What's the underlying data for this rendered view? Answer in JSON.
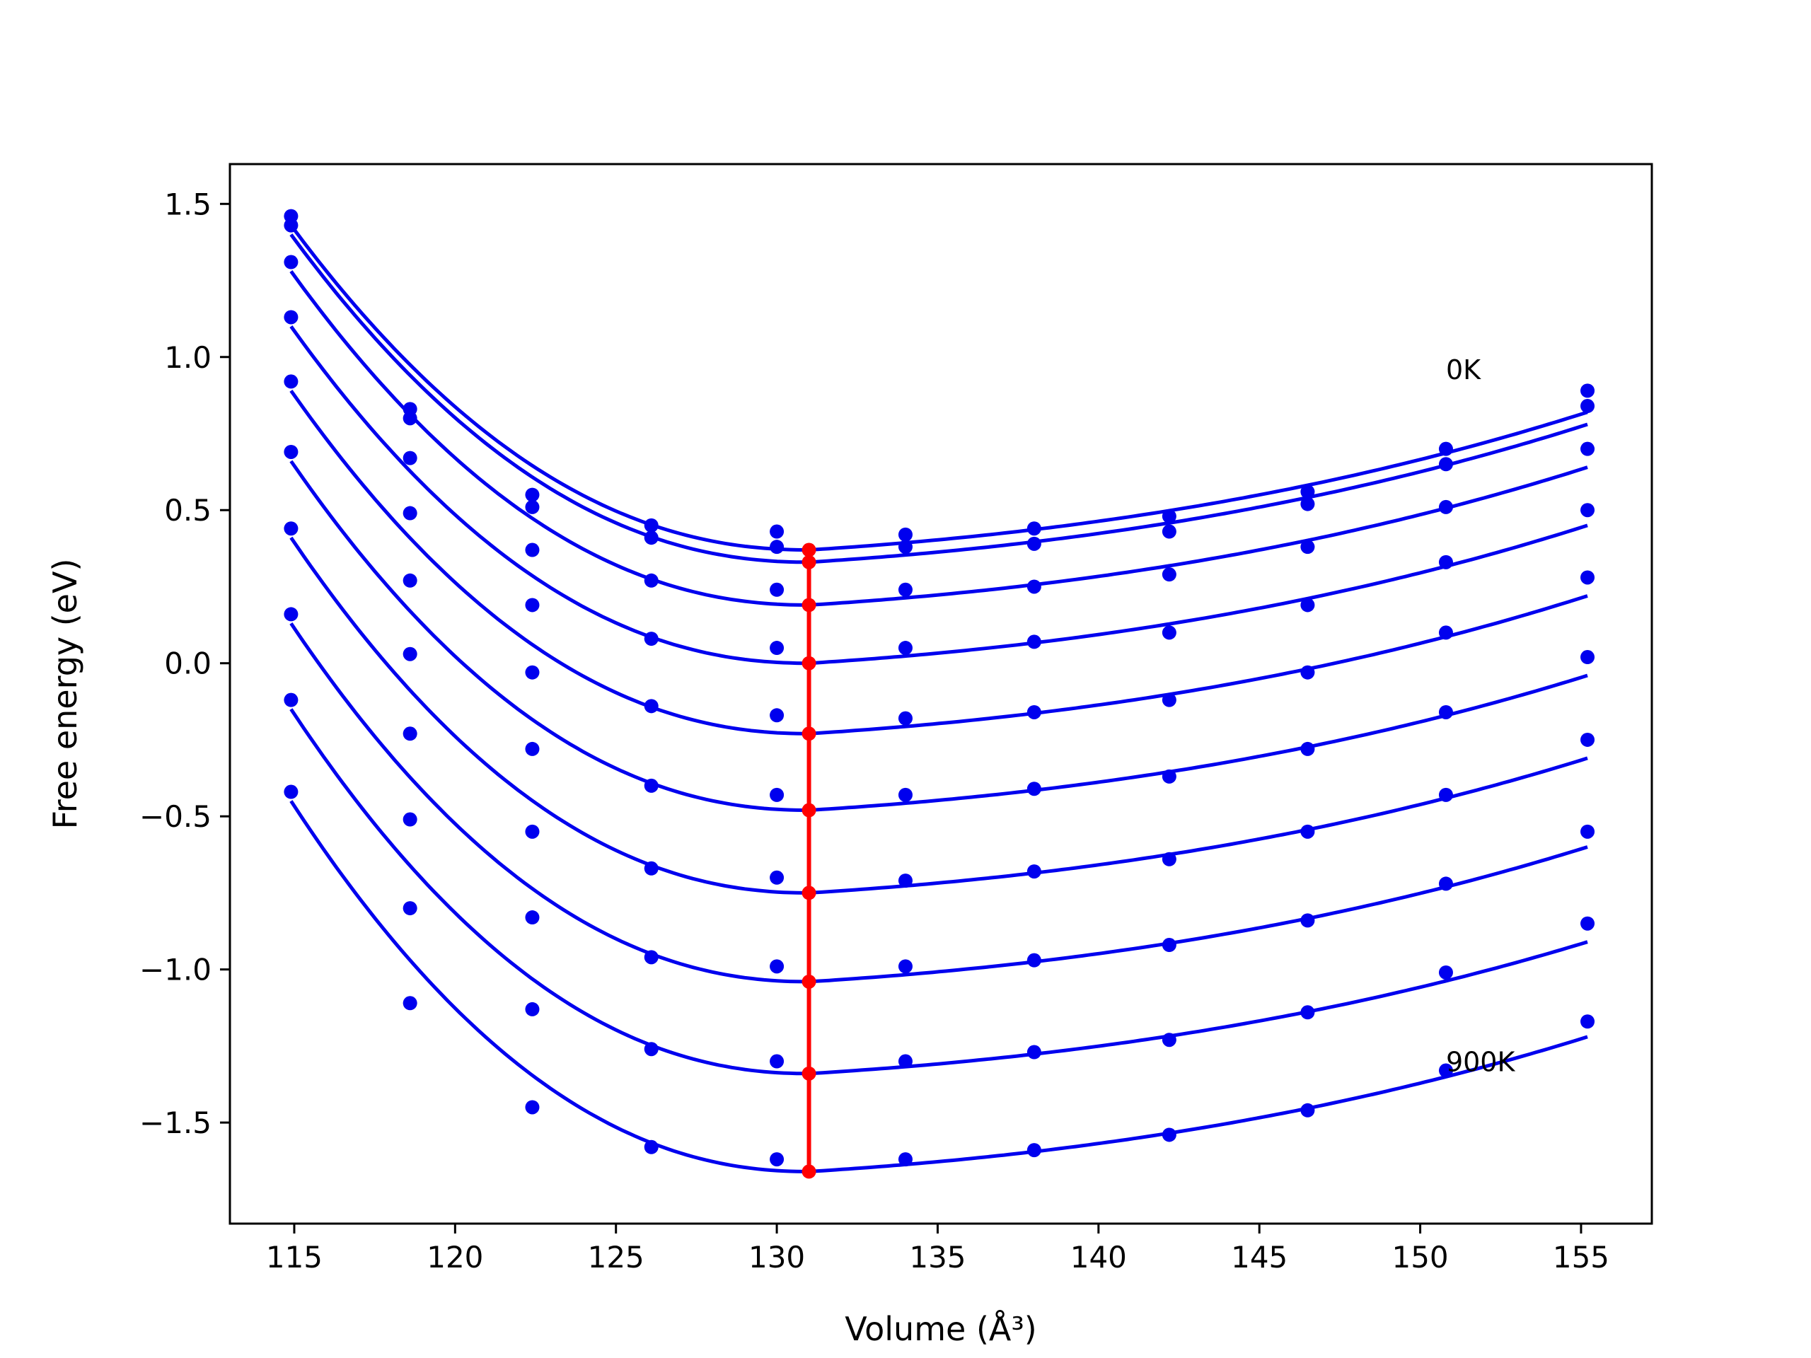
{
  "chart_data": {
    "type": "line",
    "title": "",
    "xlabel": "Volume (Å³)",
    "ylabel": "Free energy (eV)",
    "xlim": [
      113.0,
      157.2
    ],
    "ylim": [
      -1.83,
      1.63
    ],
    "x_ticks": [
      115,
      120,
      125,
      130,
      135,
      140,
      145,
      150,
      155
    ],
    "y_ticks": [
      1.5,
      1.0,
      0.5,
      0.0,
      -0.5,
      -1.0,
      -1.5
    ],
    "x_tick_labels": [
      "115",
      "120",
      "125",
      "130",
      "135",
      "140",
      "145",
      "150",
      "155"
    ],
    "y_tick_labels": [
      "1.5",
      "1.0",
      "0.5",
      "0.0",
      "−0.5",
      "−1.0",
      "−1.5"
    ],
    "grid": false,
    "legend": "none",
    "colors": {
      "fit_curves": "#0000ee",
      "data_points": "#0000ee",
      "equilibrium_line": "#ff0000"
    },
    "annotations": [
      {
        "text": "0K",
        "x": 150.8,
        "y": 0.96
      },
      {
        "text": "900K",
        "x": 150.8,
        "y": -1.3
      }
    ],
    "volumes": [
      114.9,
      118.6,
      122.4,
      126.1,
      130.0,
      134.0,
      138.0,
      142.2,
      146.5,
      150.8,
      155.2
    ],
    "series": [
      {
        "values": [
          1.46,
          0.83,
          0.55,
          0.45,
          0.43,
          0.42,
          0.44,
          0.48,
          0.56,
          0.7,
          0.89
        ],
        "fit_min": [
          131.0,
          0.37
        ],
        "fit_end": 0.82
      },
      {
        "values": [
          1.43,
          0.8,
          0.51,
          0.41,
          0.38,
          0.38,
          0.39,
          0.43,
          0.52,
          0.65,
          0.84
        ],
        "fit_min": [
          131.0,
          0.33
        ],
        "fit_end": 0.78
      },
      {
        "values": [
          1.31,
          0.67,
          0.37,
          0.27,
          0.24,
          0.24,
          0.25,
          0.29,
          0.38,
          0.51,
          0.7
        ],
        "fit_min": [
          131.0,
          0.19
        ],
        "fit_end": 0.64
      },
      {
        "values": [
          1.13,
          0.49,
          0.19,
          0.08,
          0.05,
          0.05,
          0.07,
          0.1,
          0.19,
          0.33,
          0.5
        ],
        "fit_min": [
          131.0,
          0.0
        ],
        "fit_end": 0.45
      },
      {
        "values": [
          0.92,
          0.27,
          -0.03,
          -0.14,
          -0.17,
          -0.18,
          -0.16,
          -0.12,
          -0.03,
          0.1,
          0.28
        ],
        "fit_min": [
          131.0,
          -0.23
        ],
        "fit_end": 0.22
      },
      {
        "values": [
          0.69,
          0.03,
          -0.28,
          -0.4,
          -0.43,
          -0.43,
          -0.41,
          -0.37,
          -0.28,
          -0.16,
          0.02
        ],
        "fit_min": [
          131.0,
          -0.48
        ],
        "fit_end": -0.04
      },
      {
        "values": [
          0.44,
          -0.23,
          -0.55,
          -0.67,
          -0.7,
          -0.71,
          -0.68,
          -0.64,
          -0.55,
          -0.43,
          -0.25
        ],
        "fit_min": [
          131.0,
          -0.75
        ],
        "fit_end": -0.31
      },
      {
        "values": [
          0.16,
          -0.51,
          -0.83,
          -0.96,
          -0.99,
          -0.99,
          -0.97,
          -0.92,
          -0.84,
          -0.72,
          -0.55
        ],
        "fit_min": [
          131.0,
          -1.04
        ],
        "fit_end": -0.6
      },
      {
        "values": [
          -0.12,
          -0.8,
          -1.13,
          -1.26,
          -1.3,
          -1.3,
          -1.27,
          -1.23,
          -1.14,
          -1.01,
          -0.85
        ],
        "fit_min": [
          131.0,
          -1.34
        ],
        "fit_end": -0.91
      },
      {
        "values": [
          -0.42,
          -1.11,
          -1.45,
          -1.58,
          -1.62,
          -1.62,
          -1.59,
          -1.54,
          -1.46,
          -1.33,
          -1.17
        ],
        "fit_min": [
          131.0,
          -1.66
        ],
        "fit_end": -1.22
      }
    ],
    "equilibrium_line": {
      "volume": 131.0,
      "values": [
        0.37,
        0.33,
        0.19,
        0.0,
        -0.23,
        -0.48,
        -0.75,
        -1.04,
        -1.34,
        -1.66
      ]
    }
  }
}
